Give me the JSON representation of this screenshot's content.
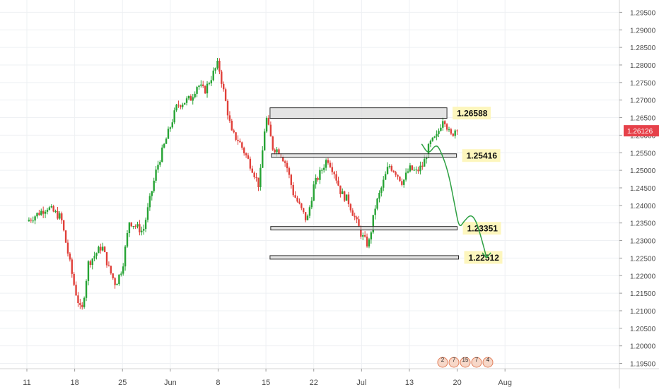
{
  "chart_data": {
    "type": "candlestick",
    "instrument_last_price": "1.26126",
    "colors": {
      "up": "#26a334",
      "down": "#e0403a",
      "grid": "#eef0f3",
      "axis_text": "#4a4a4a",
      "last_price_bg": "#e6414a",
      "zone_fill": "#d8d8d8",
      "zone_stroke": "#2b2b2b",
      "label_bg": "#fdf6bd",
      "projection": "#2ea043"
    },
    "x_axis": {
      "tick_labels": [
        "11",
        "18",
        "25",
        "Jun",
        "8",
        "15",
        "22",
        "Jul",
        "13",
        "20",
        "Aug"
      ],
      "tick_positions": [
        0,
        7,
        14,
        21,
        28,
        35,
        42,
        49,
        56,
        63,
        70
      ]
    },
    "y_axis": {
      "range": [
        1.1935,
        1.2985
      ],
      "tick_labels": [
        "1.29500",
        "1.29000",
        "1.28500",
        "1.28000",
        "1.27500",
        "1.27000",
        "1.26500",
        "1.26000",
        "1.25500",
        "1.25000",
        "1.24500",
        "1.24000",
        "1.23500",
        "1.23000",
        "1.22500",
        "1.22000",
        "1.21500",
        "1.21000",
        "1.20500",
        "1.20000",
        "1.19500"
      ],
      "tick_values": [
        1.295,
        1.29,
        1.285,
        1.28,
        1.275,
        1.27,
        1.265,
        1.26,
        1.255,
        1.25,
        1.245,
        1.24,
        1.235,
        1.23,
        1.225,
        1.22,
        1.215,
        1.21,
        1.205,
        1.2,
        1.195
      ]
    },
    "price_path": {
      "day_values": [
        0,
        1.2355,
        3,
        1.2395,
        5,
        1.2365,
        7,
        1.2165,
        8,
        1.209,
        9,
        1.2235,
        11,
        1.2285,
        12,
        1.222,
        13,
        1.2175,
        14,
        1.2225,
        15,
        1.2355,
        17,
        1.2325,
        18,
        1.2415,
        19,
        1.2505,
        21,
        1.2625,
        22,
        1.2685,
        24,
        1.2705,
        25,
        1.2745,
        26,
        1.2725,
        27,
        1.2765,
        28,
        1.2805,
        29,
        1.2705,
        30,
        1.2605,
        31,
        1.2585,
        32,
        1.2545,
        33,
        1.2505,
        34,
        1.2455,
        35,
        1.2655,
        36,
        1.2565,
        37,
        1.2555,
        38,
        1.2515,
        39,
        1.2435,
        40,
        1.2395,
        41,
        1.2355,
        42,
        1.2455,
        43,
        1.2495,
        44,
        1.2535,
        45,
        1.2495,
        46,
        1.2435,
        47,
        1.2415,
        48,
        1.2365,
        49,
        1.2315,
        50,
        1.2285,
        51,
        1.2395,
        52,
        1.2455,
        53,
        1.2515,
        54,
        1.2495,
        55,
        1.2465,
        56,
        1.2505,
        57,
        1.2495,
        58,
        1.2515,
        59,
        1.2575,
        60,
        1.2595,
        61,
        1.2655,
        62,
        1.2595,
        63,
        1.2625
      ]
    },
    "zones": [
      {
        "label": "1.26588",
        "top": 1.2678,
        "bottom": 1.2648,
        "x_start": 35.6,
        "x_end": 61.5
      },
      {
        "label": "1.25416",
        "top": 1.2547,
        "bottom": 1.2537,
        "x_start": 35.8,
        "x_end": 62.9
      },
      {
        "label": "1.23351",
        "top": 1.234,
        "bottom": 1.233,
        "x_start": 35.7,
        "x_end": 63.0
      },
      {
        "label": "1.22512",
        "top": 1.2257,
        "bottom": 1.2247,
        "x_start": 35.6,
        "x_end": 63.2
      }
    ],
    "projection": {
      "points": [
        [
          57.8,
          1.2575
        ],
        [
          58.8,
          1.2545
        ],
        [
          59.9,
          1.2575
        ],
        [
          60.6,
          1.2555
        ],
        [
          61.7,
          1.2495
        ],
        [
          62.7,
          1.2395
        ],
        [
          63.3,
          1.2335
        ],
        [
          64.0,
          1.2355
        ],
        [
          65.0,
          1.2375
        ],
        [
          65.8,
          1.2355
        ],
        [
          66.6,
          1.2303
        ],
        [
          67.3,
          1.2251
        ]
      ]
    },
    "event_markers": [
      "2",
      "7",
      "15",
      "7",
      "4"
    ]
  }
}
